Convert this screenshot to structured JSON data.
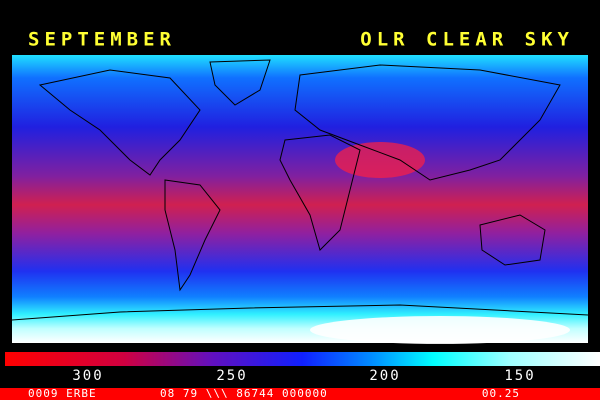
{
  "header": {
    "month": "SEPTEMBER",
    "title": "OLR CLEAR SKY"
  },
  "colorbar": {
    "ticks": [
      300,
      250,
      200,
      150
    ]
  },
  "footer": {
    "left": "0009 ERBE",
    "center": "08 79 \\\\\\ 86744 000000",
    "right": "00.25"
  }
}
